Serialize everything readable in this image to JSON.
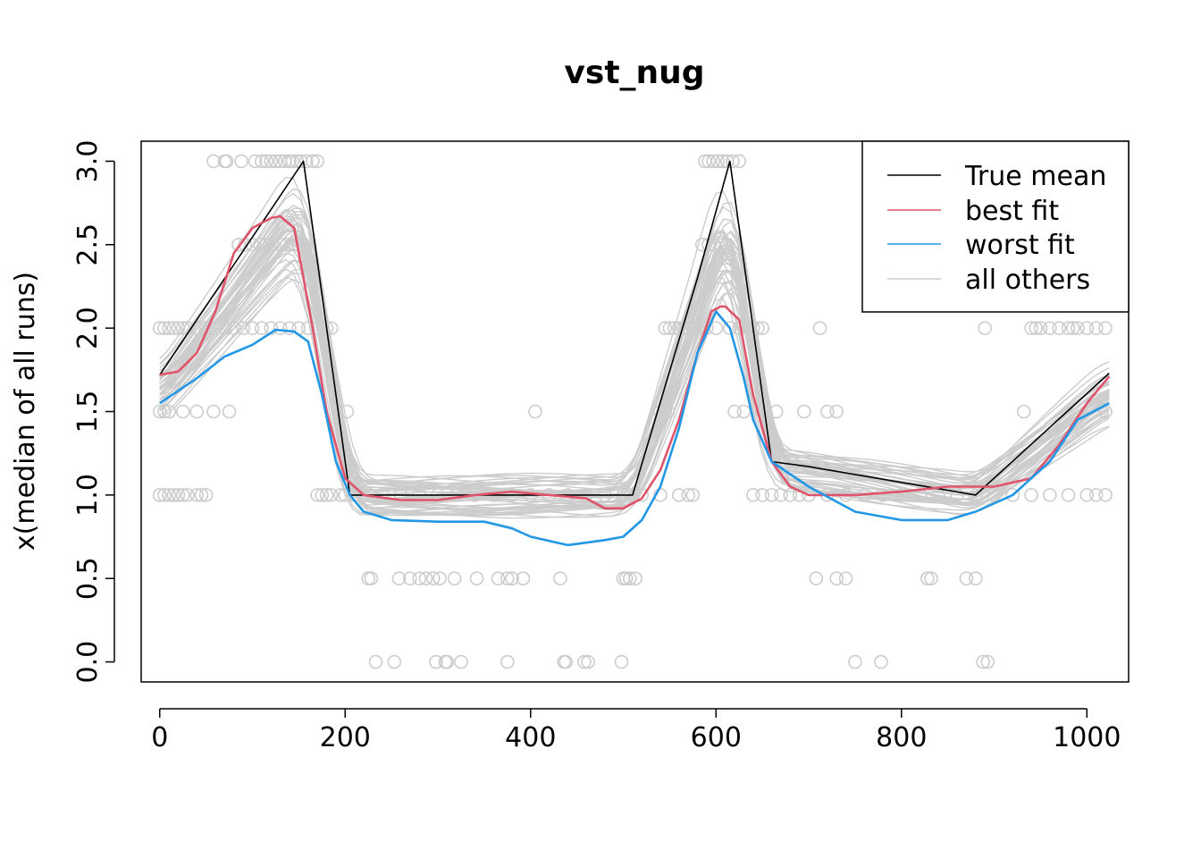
{
  "chart_data": {
    "type": "line",
    "title": "vst_nug",
    "xlabel": "",
    "ylabel": "x(median of all runs)",
    "xlim": [
      -20,
      1045
    ],
    "ylim": [
      -0.12,
      3.12
    ],
    "x_ticks": [
      0,
      200,
      400,
      600,
      800,
      1000
    ],
    "y_ticks": [
      0.0,
      0.5,
      1.0,
      1.5,
      2.0,
      2.5,
      3.0
    ],
    "x_tick_labels": [
      "0",
      "200",
      "400",
      "600",
      "800",
      "1000"
    ],
    "y_tick_labels": [
      "0.0",
      "0.5",
      "1.0",
      "1.5",
      "2.0",
      "2.5",
      "3.0"
    ],
    "grid": false,
    "legend_position": "top-right",
    "colors": {
      "true_mean": "#000000",
      "best_fit": "#DF536B",
      "worst_fit": "#2297E6",
      "all_others": "#CCCCCC"
    },
    "legend": [
      "True mean",
      "best fit",
      "worst fit",
      "all others"
    ],
    "series": [
      {
        "name": "True mean",
        "x": [
          0,
          155,
          205,
          510,
          580,
          615,
          660,
          700,
          880,
          1024
        ],
        "y": [
          1.72,
          3.0,
          1.0,
          1.0,
          2.3,
          3.0,
          1.2,
          1.17,
          1.0,
          1.73
        ]
      },
      {
        "name": "best fit",
        "x": [
          0,
          20,
          40,
          60,
          80,
          100,
          120,
          130,
          145,
          155,
          165,
          180,
          200,
          220,
          260,
          300,
          340,
          380,
          420,
          460,
          480,
          500,
          520,
          540,
          560,
          580,
          595,
          605,
          610,
          625,
          640,
          660,
          680,
          700,
          750,
          800,
          850,
          900,
          940,
          970,
          1000,
          1024
        ],
        "y": [
          1.72,
          1.74,
          1.85,
          2.1,
          2.45,
          2.6,
          2.66,
          2.67,
          2.6,
          2.3,
          2.0,
          1.5,
          1.1,
          1.0,
          0.97,
          0.97,
          1.0,
          1.02,
          1.0,
          0.98,
          0.92,
          0.92,
          0.98,
          1.15,
          1.45,
          1.85,
          2.1,
          2.13,
          2.13,
          2.05,
          1.6,
          1.2,
          1.05,
          1.0,
          1.0,
          1.02,
          1.05,
          1.05,
          1.1,
          1.3,
          1.55,
          1.71
        ]
      },
      {
        "name": "worst fit",
        "x": [
          0,
          40,
          70,
          100,
          125,
          145,
          160,
          175,
          190,
          205,
          220,
          250,
          300,
          350,
          380,
          400,
          440,
          480,
          500,
          520,
          540,
          560,
          580,
          600,
          615,
          630,
          640,
          660,
          700,
          750,
          800,
          850,
          880,
          920,
          960,
          990,
          1024
        ],
        "y": [
          1.55,
          1.7,
          1.83,
          1.9,
          1.99,
          1.98,
          1.92,
          1.6,
          1.2,
          1.0,
          0.9,
          0.85,
          0.84,
          0.84,
          0.8,
          0.75,
          0.7,
          0.73,
          0.75,
          0.85,
          1.05,
          1.4,
          1.85,
          2.1,
          2.0,
          1.7,
          1.45,
          1.2,
          1.05,
          0.9,
          0.85,
          0.85,
          0.9,
          1.0,
          1.2,
          1.45,
          1.55
        ]
      }
    ],
    "points": {
      "name": "all others",
      "values": [
        {
          "y": 3.0,
          "x": [
            58,
            70,
            72,
            88,
            103,
            110,
            115,
            120,
            125,
            130,
            135,
            140,
            143,
            148,
            152,
            158,
            165,
            170,
            588,
            592,
            597,
            602,
            607,
            612,
            618,
            625
          ]
        },
        {
          "y": 2.5,
          "x": [
            85,
            92,
            100,
            108,
            115,
            122,
            130,
            137,
            145,
            150,
            585,
            592,
            598,
            605,
            612
          ]
        },
        {
          "y": 2.0,
          "x": [
            0,
            5,
            10,
            15,
            20,
            25,
            30,
            40,
            50,
            60,
            70,
            80,
            90,
            100,
            110,
            120,
            130,
            140,
            150,
            160,
            170,
            180,
            185,
            545,
            550,
            555,
            560,
            565,
            570,
            575,
            580,
            590,
            600,
            615,
            625,
            635,
            640,
            645,
            650,
            712,
            890,
            940,
            945,
            950,
            960,
            970,
            980,
            985,
            990,
            1000,
            1010,
            1020
          ]
        },
        {
          "y": 1.5,
          "x": [
            0,
            5,
            10,
            25,
            40,
            58,
            75,
            202,
            405,
            540,
            545,
            548,
            620,
            630,
            650,
            665,
            695,
            720,
            730,
            932,
            1020
          ]
        },
        {
          "y": 1.0,
          "x": [
            0,
            5,
            10,
            15,
            20,
            25,
            30,
            40,
            45,
            50,
            170,
            175,
            180,
            185,
            195,
            200,
            210,
            220,
            240,
            260,
            280,
            300,
            320,
            340,
            360,
            380,
            400,
            420,
            440,
            460,
            480,
            500,
            520,
            540,
            560,
            570,
            575,
            640,
            650,
            660,
            670,
            680,
            690,
            700,
            720,
            740,
            760,
            780,
            800,
            820,
            840,
            860,
            880,
            900,
            920,
            940,
            960,
            980,
            1000,
            1010,
            1020
          ]
        },
        {
          "y": 0.5,
          "x": [
            225,
            228,
            258,
            270,
            280,
            287,
            295,
            302,
            318,
            342,
            365,
            375,
            380,
            392,
            432,
            500,
            503,
            507,
            513,
            708,
            730,
            740,
            828,
            832,
            870,
            880
          ]
        },
        {
          "y": 0.0,
          "x": [
            233,
            253,
            298,
            308,
            310,
            325,
            375,
            436,
            438,
            458,
            462,
            498,
            750,
            778,
            888,
            893
          ]
        }
      ]
    }
  }
}
